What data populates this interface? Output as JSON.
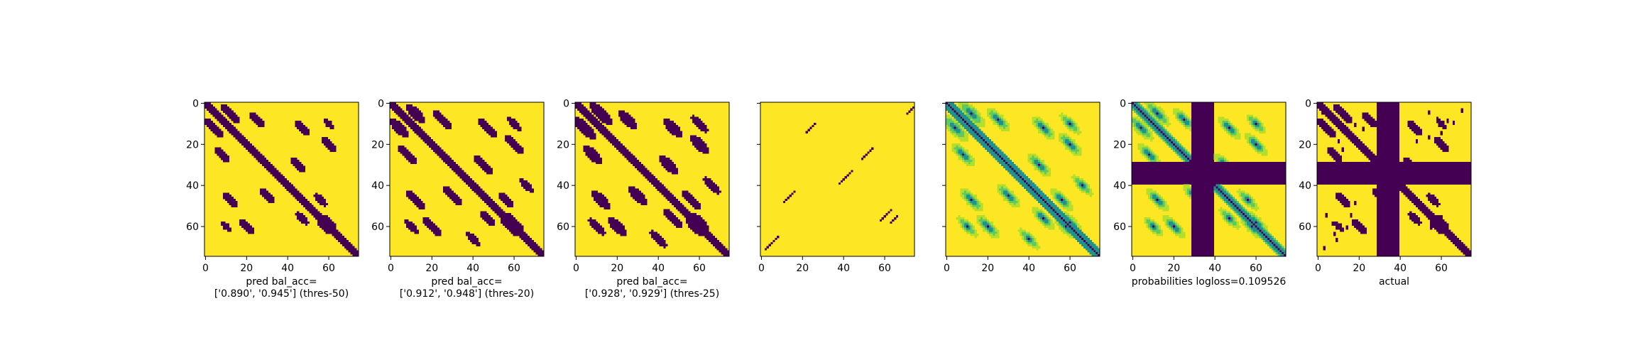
{
  "figure": {
    "colors": {
      "low": "#440154",
      "high": "#fde725",
      "mid1": "#21918c",
      "mid2": "#5ec962",
      "mid3": "#3b528b"
    }
  },
  "chart_data": [
    {
      "type": "heatmap",
      "variant": "prediction-threshold",
      "caption_lines": [
        "pred bal_acc=",
        "['0.890', '0.945'] (thres-50)"
      ],
      "x_ticks": [
        0,
        20,
        40,
        60
      ],
      "y_ticks": [
        0,
        20,
        40,
        60
      ],
      "xlim": [
        0,
        75
      ],
      "ylim": [
        75,
        0
      ],
      "size": 75,
      "bands": [
        0,
        11,
        24
      ],
      "band_width": 2.0,
      "extra_bands": [],
      "blobs": [
        [
          12,
          4,
          3.0
        ],
        [
          5,
          12,
          3.0
        ],
        [
          25,
          8,
          2.5
        ],
        [
          8,
          25,
          2.5
        ],
        [
          47,
          12,
          2.5
        ],
        [
          12,
          47,
          2.5
        ],
        [
          60,
          20,
          2.5
        ],
        [
          20,
          60,
          2.5
        ],
        [
          45,
          30,
          2.5
        ],
        [
          30,
          45,
          2.5
        ],
        [
          60,
          10,
          2.0
        ],
        [
          10,
          60,
          2.0
        ],
        [
          56,
          47,
          2.2
        ],
        [
          47,
          56,
          2.2
        ],
        [
          58,
          60,
          2.5
        ],
        [
          60,
          58,
          2.5
        ]
      ],
      "stripes": [],
      "noise_specks": []
    },
    {
      "type": "heatmap",
      "variant": "prediction-threshold",
      "caption_lines": [
        "pred bal_acc=",
        "['0.912', '0.948'] (thres-20)"
      ],
      "x_ticks": [
        0,
        20,
        40,
        60
      ],
      "y_ticks": [
        0,
        20,
        40,
        60
      ],
      "xlim": [
        0,
        75
      ],
      "ylim": [
        75,
        0
      ],
      "size": 75,
      "bands": [
        0,
        11,
        24
      ],
      "band_width": 2.3,
      "extra_bands": [],
      "blobs": [
        [
          12,
          4,
          3.4
        ],
        [
          5,
          12,
          3.4
        ],
        [
          25,
          8,
          3.0
        ],
        [
          8,
          25,
          3.0
        ],
        [
          47,
          12,
          3.0
        ],
        [
          12,
          47,
          3.0
        ],
        [
          60,
          20,
          3.0
        ],
        [
          20,
          60,
          3.0
        ],
        [
          45,
          30,
          3.0
        ],
        [
          30,
          45,
          3.0
        ],
        [
          60,
          10,
          2.4
        ],
        [
          10,
          60,
          2.4
        ],
        [
          56,
          47,
          2.6
        ],
        [
          47,
          56,
          2.6
        ],
        [
          58,
          60,
          3.0
        ],
        [
          60,
          58,
          3.0
        ],
        [
          40,
          66,
          2.4
        ],
        [
          66,
          40,
          2.4
        ]
      ],
      "stripes": [],
      "noise_specks": []
    },
    {
      "type": "heatmap",
      "variant": "prediction-threshold",
      "caption_lines": [
        "pred bal_acc=",
        "['0.928', '0.929'] (thres-25)"
      ],
      "x_ticks": [
        0,
        20,
        40,
        60
      ],
      "y_ticks": [
        0,
        20,
        40,
        60
      ],
      "xlim": [
        0,
        75
      ],
      "ylim": [
        75,
        0
      ],
      "size": 75,
      "bands": [
        0,
        11,
        24
      ],
      "band_width": 2.5,
      "extra_bands": [],
      "blobs": [
        [
          12,
          4,
          3.8
        ],
        [
          5,
          12,
          3.8
        ],
        [
          25,
          8,
          3.2
        ],
        [
          8,
          25,
          3.2
        ],
        [
          47,
          12,
          3.2
        ],
        [
          12,
          47,
          3.2
        ],
        [
          60,
          20,
          3.2
        ],
        [
          20,
          60,
          3.2
        ],
        [
          45,
          30,
          3.2
        ],
        [
          30,
          45,
          3.2
        ],
        [
          60,
          10,
          2.8
        ],
        [
          10,
          60,
          2.8
        ],
        [
          56,
          47,
          3.0
        ],
        [
          47,
          56,
          3.0
        ],
        [
          58,
          60,
          3.4
        ],
        [
          60,
          58,
          3.4
        ],
        [
          40,
          66,
          2.8
        ],
        [
          66,
          40,
          2.8
        ]
      ],
      "stripes": [],
      "noise_specks": []
    },
    {
      "type": "heatmap",
      "variant": "sparse-diagonal",
      "caption_lines": [],
      "x_ticks": [
        0,
        20,
        40,
        60
      ],
      "y_ticks": [],
      "xlim": [
        0,
        75
      ],
      "ylim": [
        75,
        0
      ],
      "size": 75,
      "segments": [
        [
          70,
          0,
          6
        ],
        [
          21,
          10,
          5
        ],
        [
          48,
          22,
          6
        ],
        [
          37,
          33,
          7
        ],
        [
          10,
          43,
          6
        ],
        [
          57,
          52,
          6
        ],
        [
          62,
          55,
          4
        ],
        [
          1,
          65,
          7
        ]
      ],
      "bands": [],
      "blobs": [],
      "stripes": [],
      "noise_specks": []
    },
    {
      "type": "heatmap",
      "variant": "probabilities",
      "caption_lines": [],
      "x_ticks": [
        0,
        20,
        40,
        60
      ],
      "y_ticks": [],
      "xlim": [
        0,
        75
      ],
      "ylim": [
        75,
        0
      ],
      "size": 75,
      "bands": [
        0,
        11,
        24
      ],
      "band_width": 3.5,
      "blobs": [
        [
          12,
          4,
          4.5
        ],
        [
          5,
          12,
          4.5
        ],
        [
          25,
          8,
          4.0
        ],
        [
          8,
          25,
          4.0
        ],
        [
          47,
          12,
          4.0
        ],
        [
          12,
          47,
          4.0
        ],
        [
          60,
          20,
          4.0
        ],
        [
          20,
          60,
          4.0
        ],
        [
          45,
          30,
          4.0
        ],
        [
          30,
          45,
          4.0
        ],
        [
          60,
          10,
          3.5
        ],
        [
          10,
          60,
          3.5
        ],
        [
          56,
          47,
          3.8
        ],
        [
          47,
          56,
          3.8
        ],
        [
          58,
          60,
          4.2
        ],
        [
          60,
          58,
          4.2
        ],
        [
          66,
          40,
          3.5
        ],
        [
          40,
          66,
          3.5
        ]
      ],
      "stripes": [],
      "noise_specks": []
    },
    {
      "type": "heatmap",
      "variant": "probabilities-masked",
      "caption_lines": [
        "probabilities logloss=0.109526"
      ],
      "x_ticks": [
        0,
        20,
        40,
        60
      ],
      "y_ticks": [
        0,
        20,
        40,
        60
      ],
      "xlim": [
        0,
        75
      ],
      "ylim": [
        75,
        0
      ],
      "size": 75,
      "bands": [
        0,
        11,
        24
      ],
      "band_width": 3.0,
      "blobs": [
        [
          12,
          4,
          4.2
        ],
        [
          5,
          12,
          4.2
        ],
        [
          25,
          8,
          3.8
        ],
        [
          8,
          25,
          3.8
        ],
        [
          47,
          12,
          3.8
        ],
        [
          12,
          47,
          3.8
        ],
        [
          60,
          20,
          3.8
        ],
        [
          20,
          60,
          3.8
        ],
        [
          45,
          30,
          3.8
        ],
        [
          30,
          45,
          3.8
        ],
        [
          60,
          10,
          3.2
        ],
        [
          10,
          60,
          3.2
        ],
        [
          56,
          47,
          3.5
        ],
        [
          47,
          56,
          3.5
        ],
        [
          58,
          60,
          4.0
        ],
        [
          60,
          58,
          4.0
        ]
      ],
      "stripes": [
        [
          29,
          40
        ]
      ],
      "noise_specks": []
    },
    {
      "type": "heatmap",
      "variant": "actual-masked",
      "caption_lines": [
        "actual"
      ],
      "x_ticks": [
        0,
        20,
        40,
        60
      ],
      "y_ticks": [
        0,
        20,
        40,
        60
      ],
      "xlim": [
        0,
        75
      ],
      "ylim": [
        75,
        0
      ],
      "size": 75,
      "bands": [
        0,
        11,
        24
      ],
      "band_width": 2.2,
      "blobs": [
        [
          12,
          4,
          3.0
        ],
        [
          5,
          12,
          3.0
        ],
        [
          25,
          8,
          2.5
        ],
        [
          8,
          25,
          2.5
        ],
        [
          47,
          12,
          2.5
        ],
        [
          12,
          47,
          2.5
        ],
        [
          60,
          20,
          2.5
        ],
        [
          20,
          60,
          2.5
        ],
        [
          45,
          30,
          2.5
        ],
        [
          30,
          45,
          2.5
        ],
        [
          60,
          10,
          2.0
        ],
        [
          10,
          60,
          2.0
        ],
        [
          56,
          47,
          2.2
        ],
        [
          47,
          56,
          2.2
        ],
        [
          58,
          60,
          2.5
        ],
        [
          60,
          58,
          2.5
        ]
      ],
      "stripes": [
        [
          29,
          40
        ]
      ],
      "noise_specks": [
        [
          4,
          2
        ],
        [
          2,
          4
        ],
        [
          18,
          10
        ],
        [
          10,
          18
        ],
        [
          22,
          12
        ],
        [
          12,
          22
        ],
        [
          54,
          4
        ],
        [
          4,
          54
        ],
        [
          63,
          8
        ],
        [
          8,
          63
        ],
        [
          70,
          3
        ],
        [
          3,
          70
        ],
        [
          66,
          9
        ],
        [
          9,
          66
        ],
        [
          60,
          14
        ],
        [
          14,
          60
        ],
        [
          55,
          60
        ],
        [
          60,
          55
        ],
        [
          16,
          54
        ],
        [
          54,
          16
        ],
        [
          18,
          48
        ],
        [
          48,
          18
        ],
        [
          58,
          7
        ],
        [
          7,
          58
        ]
      ]
    }
  ]
}
